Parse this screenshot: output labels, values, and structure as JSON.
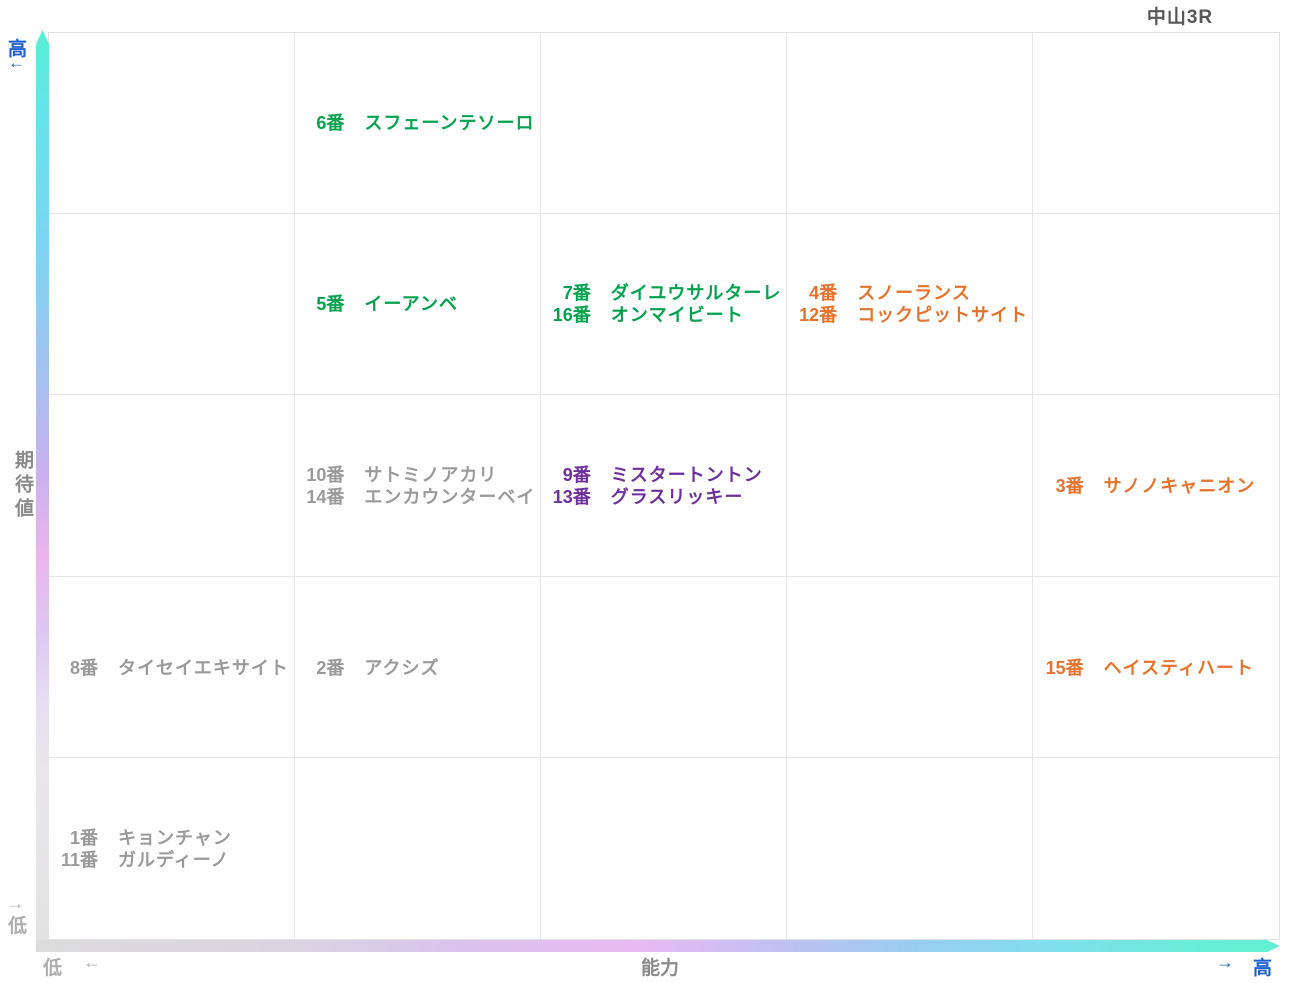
{
  "title": "中山3R",
  "axes": {
    "y_label": "期待値",
    "y_high": "高",
    "y_high_arrow": "←",
    "y_low": "低",
    "y_low_arrow": "→",
    "x_label": "能力",
    "x_low": "低",
    "x_low_arrow": "←",
    "x_high": "高",
    "x_high_arrow": "→"
  },
  "colors": {
    "green": "#00a24d",
    "orange": "#e5732c",
    "purple": "#6d2f9c",
    "gray": "#9a9a9a",
    "axis_blue": "#1c61cf",
    "axis_gray": "#adadad",
    "title_gray": "#575757",
    "grid_line": "#e6e6e6",
    "bar_cyan": "#58efd4",
    "bar_pink": "#e9b9f3",
    "bar_gray": "#dcdcdc"
  },
  "chart_data": {
    "type": "scatter",
    "title": "中山3R",
    "xlabel": "能力",
    "ylabel": "期待値",
    "x_range": [
      "低",
      "高"
    ],
    "y_range": [
      "低",
      "高"
    ],
    "grid": {
      "columns": 5,
      "rows": 5
    },
    "entries": [
      {
        "col": 2,
        "row": 1,
        "color": "green",
        "horses": [
          {
            "num": "6番",
            "name": "スフェーンテソーロ"
          }
        ]
      },
      {
        "col": 2,
        "row": 2,
        "color": "green",
        "horses": [
          {
            "num": "5番",
            "name": "イーアンベ"
          }
        ]
      },
      {
        "col": 3,
        "row": 2,
        "color": "green",
        "horses": [
          {
            "num": "7番",
            "name": "ダイユウサルターレ"
          },
          {
            "num": "16番",
            "name": "オンマイビート"
          }
        ]
      },
      {
        "col": 4,
        "row": 2,
        "color": "orange",
        "horses": [
          {
            "num": "4番",
            "name": "スノーランス"
          },
          {
            "num": "12番",
            "name": "コックピットサイト"
          }
        ]
      },
      {
        "col": 2,
        "row": 3,
        "color": "gray",
        "horses": [
          {
            "num": "10番",
            "name": "サトミノアカリ"
          },
          {
            "num": "14番",
            "name": "エンカウンターベイ"
          }
        ]
      },
      {
        "col": 3,
        "row": 3,
        "color": "purple",
        "horses": [
          {
            "num": "9番",
            "name": "ミスタートントン"
          },
          {
            "num": "13番",
            "name": "グラスリッキー"
          }
        ]
      },
      {
        "col": 5,
        "row": 3,
        "color": "orange",
        "horses": [
          {
            "num": "3番",
            "name": "サノノキャニオン"
          }
        ]
      },
      {
        "col": 1,
        "row": 4,
        "color": "gray",
        "horses": [
          {
            "num": "8番",
            "name": "タイセイエキサイト"
          }
        ]
      },
      {
        "col": 2,
        "row": 4,
        "color": "gray",
        "horses": [
          {
            "num": "2番",
            "name": "アクシズ"
          }
        ]
      },
      {
        "col": 5,
        "row": 4,
        "color": "orange",
        "horses": [
          {
            "num": "15番",
            "name": "ヘイスティハート"
          }
        ]
      },
      {
        "col": 1,
        "row": 5,
        "color": "gray",
        "horses": [
          {
            "num": "1番",
            "name": "キョンチャン"
          },
          {
            "num": "11番",
            "name": "ガルディーノ"
          }
        ]
      }
    ]
  }
}
